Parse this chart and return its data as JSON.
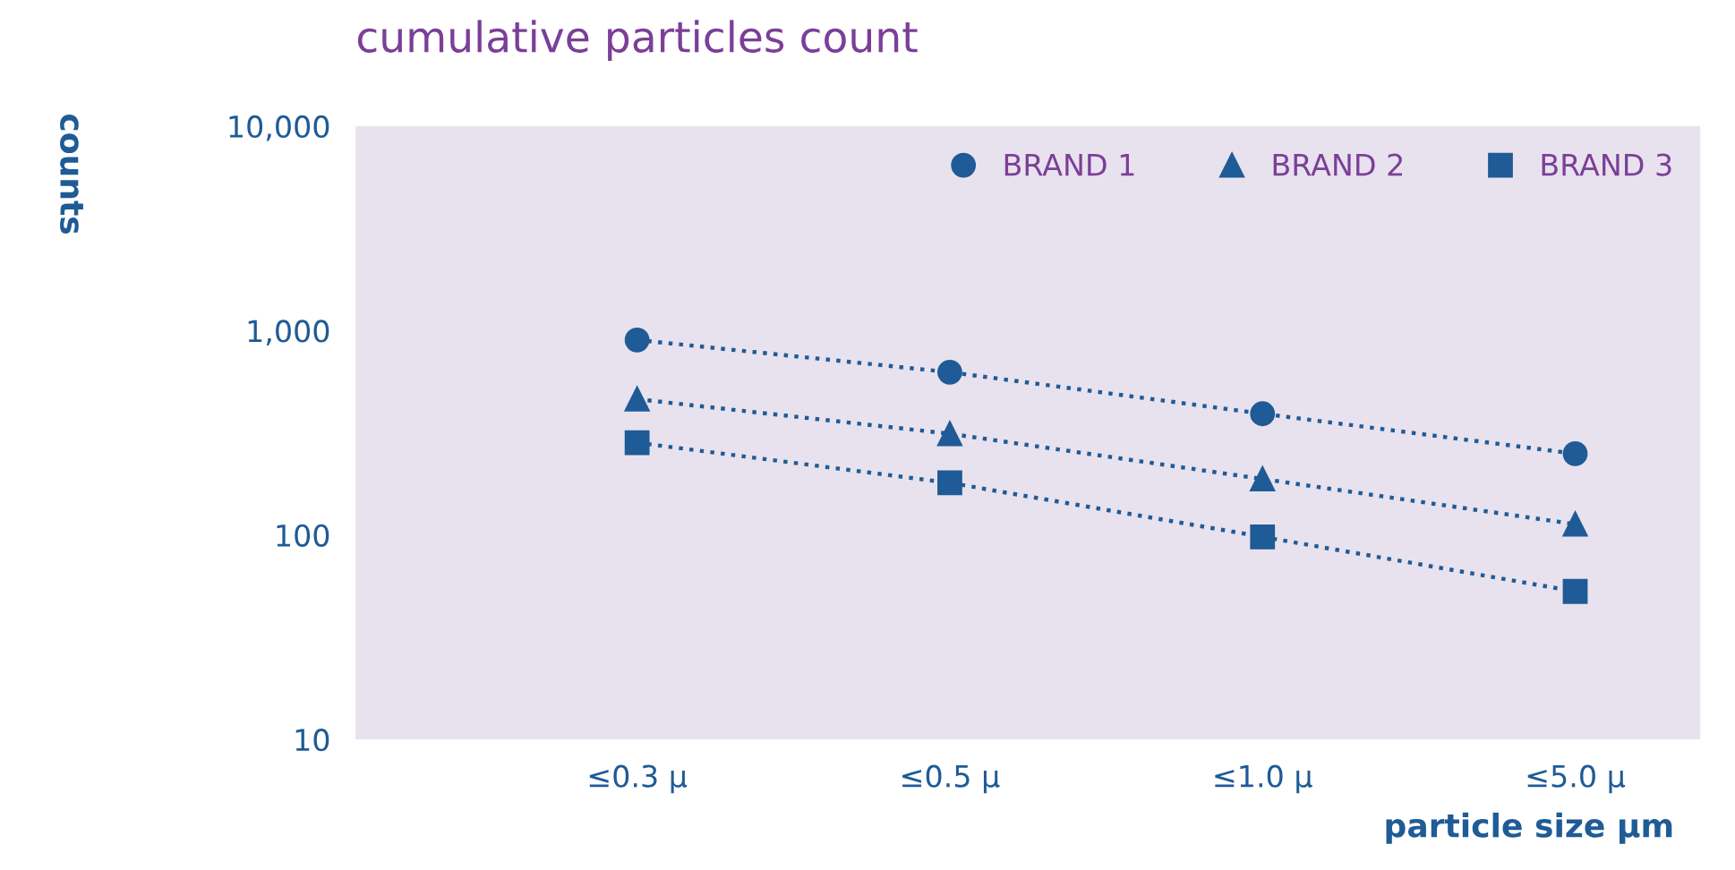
{
  "chart_data": {
    "type": "line",
    "title": "cumulative particles count",
    "xlabel": "particle size µm",
    "ylabel": "counts",
    "categories": [
      "≤0.3 µ",
      "≤0.5 µ",
      "≤1.0 µ",
      "≤5.0 µ"
    ],
    "series": [
      {
        "name": "BRAND 1",
        "color": "#1f5b96",
        "marker": "circle",
        "values": [
          900,
          626,
          392,
          250
        ]
      },
      {
        "name": "BRAND 2",
        "color": "#1f5b96",
        "marker": "triangle",
        "values": [
          462,
          313,
          188,
          113
        ]
      },
      {
        "name": "BRAND 3",
        "color": "#1f5b96",
        "marker": "square",
        "values": [
          283,
          180,
          98,
          53
        ]
      }
    ],
    "log": true,
    "ylim": [
      10,
      10000
    ],
    "yticks": [
      {
        "value": 10,
        "label": "10"
      },
      {
        "value": 100,
        "label": "100"
      },
      {
        "value": 1000,
        "label": "1,000"
      },
      {
        "value": 10000,
        "label": "10,000"
      }
    ],
    "grid": false,
    "legend": "top right",
    "line_style": "dotted"
  }
}
